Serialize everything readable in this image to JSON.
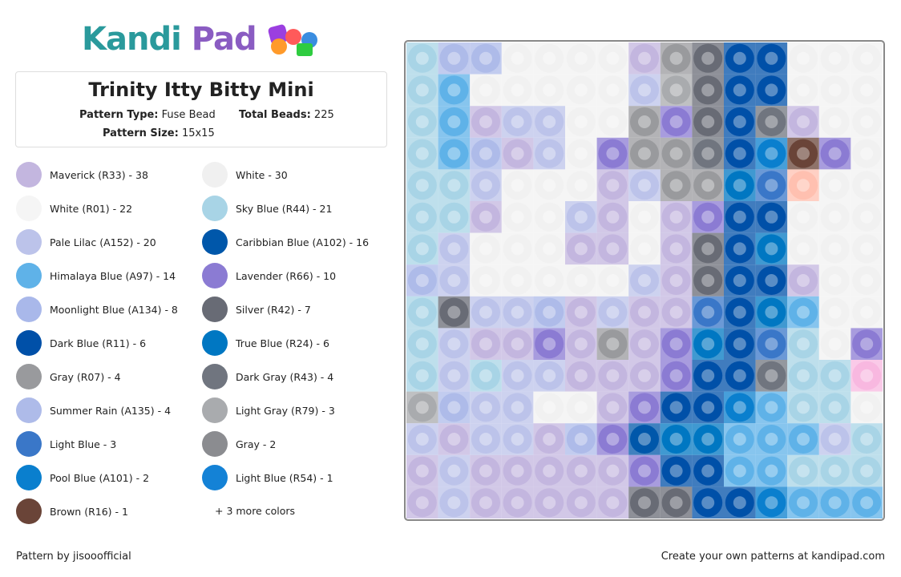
{
  "header": {
    "logo_left": "Kandi",
    "logo_right": "Pad"
  },
  "card": {
    "title": "Trinity Itty Bitty Mini",
    "pattern_type_label": "Pattern Type:",
    "pattern_type": "Fuse Bead",
    "total_beads_label": "Total Beads:",
    "total_beads": 225,
    "pattern_size_label": "Pattern Size:",
    "pattern_size": "15x15"
  },
  "colors": [
    {
      "label": "Maverick (R33) - 38",
      "color": "#c3b6df"
    },
    {
      "label": "White - 30",
      "color": "#f0f0f0"
    },
    {
      "label": "White (R01) - 22",
      "color": "#f5f5f5"
    },
    {
      "label": "Sky Blue (R44) - 21",
      "color": "#a8d4e6"
    },
    {
      "label": "Pale Lilac (A152) - 20",
      "color": "#bcc3ea"
    },
    {
      "label": "Caribbian Blue (A102) - 16",
      "color": "#0057aa"
    },
    {
      "label": "Himalaya Blue (A97) - 14",
      "color": "#5fb2e8"
    },
    {
      "label": "Lavender (R66) - 10",
      "color": "#8b7bd3"
    },
    {
      "label": "Moonlight Blue (A134) - 8",
      "color": "#a9b8ea"
    },
    {
      "label": "Silver (R42) - 7",
      "color": "#686b75"
    },
    {
      "label": "Dark Blue (R11) - 6",
      "color": "#0050a8"
    },
    {
      "label": "True Blue (R24) - 6",
      "color": "#0077c2"
    },
    {
      "label": "Gray (R07) - 4",
      "color": "#999a9d"
    },
    {
      "label": "Dark Gray (R43) - 4",
      "color": "#70757f"
    },
    {
      "label": "Summer Rain (A135) - 4",
      "color": "#aebbe9"
    },
    {
      "label": "Light Gray (R79) - 3",
      "color": "#a9abae"
    },
    {
      "label": "Light Blue - 3",
      "color": "#3a77c8"
    },
    {
      "label": "Gray - 2",
      "color": "#8b8c90"
    },
    {
      "label": "Pool Blue (A101) - 2",
      "color": "#0a7fce"
    },
    {
      "label": "Light Blue (R54) - 1",
      "color": "#1482d6"
    },
    {
      "label": "Brown (R16) - 1",
      "color": "#6a4438"
    }
  ],
  "more": "+ 3 more colors",
  "footer": {
    "left": "Pattern by jisooofficial",
    "right": "Create your own patterns at kandipad.com"
  }
}
